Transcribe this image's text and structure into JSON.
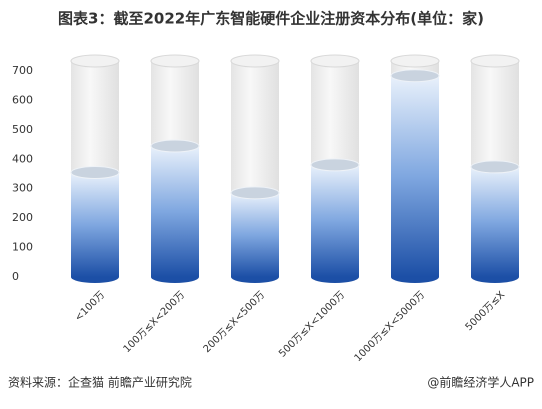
{
  "chart_data": {
    "type": "bar",
    "title": "图表3：截至2022年广东智能硬件企业注册资本分布(单位：家)",
    "categories": [
      "<100万",
      "100万≤X<200万",
      "200万≤X<500万",
      "500万≤X<1000万",
      "1000万≤X<5000万",
      "5000万≤X"
    ],
    "values": [
      355,
      445,
      286,
      381,
      684,
      374
    ],
    "color": "#1c4fa6",
    "ylim": [
      0,
      700
    ],
    "yticks": [
      0,
      100,
      200,
      300,
      400,
      500,
      600,
      700
    ],
    "grid": false,
    "source": "资料来源：企查猫 前瞻产业研究院",
    "credit": "@前瞻经济学人APP"
  }
}
